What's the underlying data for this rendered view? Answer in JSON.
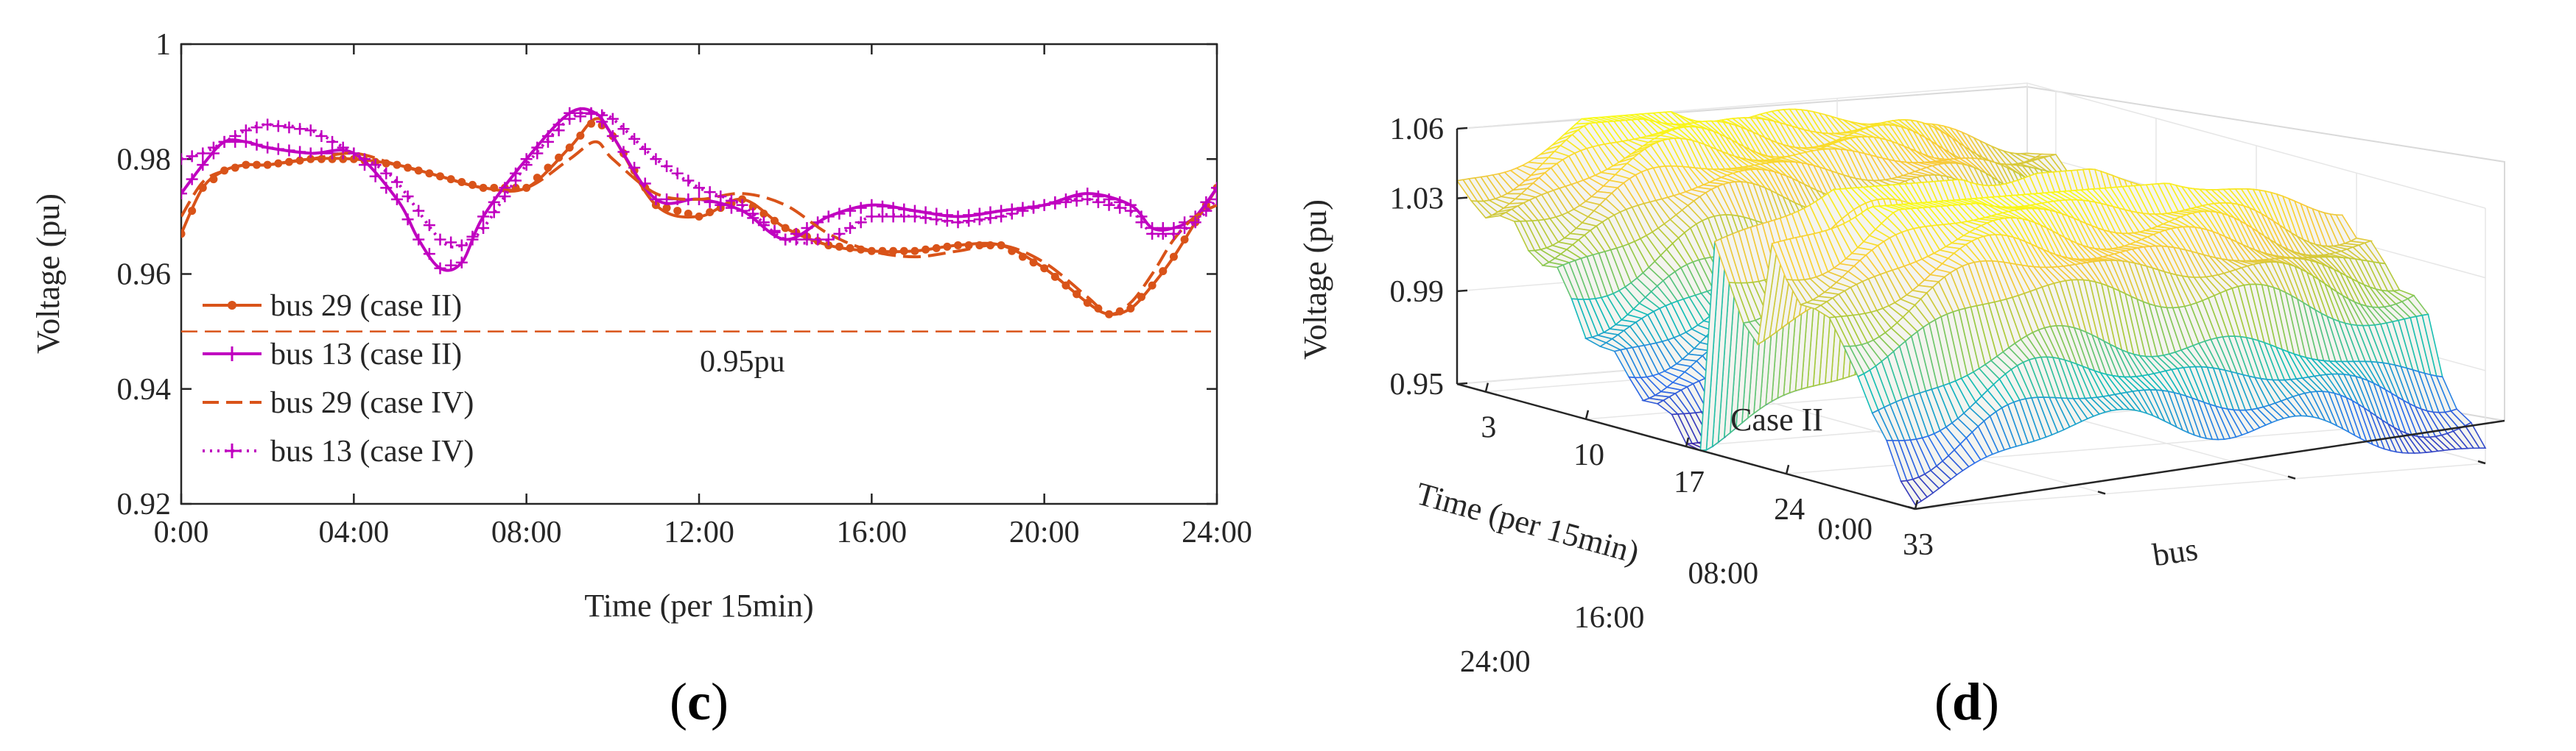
{
  "chart_data": [
    {
      "type": "line",
      "panel_label": {
        "open": "(",
        "letter": "c",
        "close": ")"
      },
      "xlabel": "Time (per 15min)",
      "ylabel": "Voltage (pu)",
      "x_ticks": [
        "0:00",
        "04:00",
        "08:00",
        "12:00",
        "16:00",
        "20:00",
        "24:00"
      ],
      "y_ticks": [
        "0.92",
        "0.94",
        "0.96",
        "0.98",
        "1"
      ],
      "xlim": [
        0,
        24
      ],
      "ylim": [
        0.92,
        1.0
      ],
      "threshold": {
        "value": 0.95,
        "label": "0.95pu"
      },
      "legend_position": "lower-left",
      "series": [
        {
          "name": "bus 29 (case II)",
          "color": "#D95319",
          "style": "solid-dot",
          "x": [
            0,
            0.5,
            1,
            1.5,
            2,
            3,
            4,
            5,
            6,
            7,
            8,
            9,
            9.6,
            10,
            11,
            12,
            13,
            14,
            15,
            16,
            17,
            18,
            19,
            20,
            21,
            21.5,
            22,
            22.5,
            23,
            23.5,
            24
          ],
          "y": [
            0.967,
            0.975,
            0.978,
            0.979,
            0.979,
            0.98,
            0.98,
            0.979,
            0.977,
            0.975,
            0.975,
            0.982,
            0.987,
            0.984,
            0.972,
            0.97,
            0.973,
            0.968,
            0.965,
            0.964,
            0.964,
            0.965,
            0.965,
            0.961,
            0.955,
            0.953,
            0.954,
            0.958,
            0.963,
            0.969,
            0.975
          ]
        },
        {
          "name": "bus 13 (case II)",
          "color": "#C000C0",
          "style": "solid-plus",
          "x": [
            0,
            0.5,
            1,
            1.5,
            2,
            3,
            4,
            5,
            5.5,
            6,
            6.5,
            7,
            8,
            9,
            9.6,
            10,
            11,
            12,
            13,
            14,
            15,
            16,
            17,
            18,
            19,
            20,
            21,
            22,
            22.5,
            23,
            23.5,
            24
          ],
          "y": [
            0.974,
            0.979,
            0.983,
            0.983,
            0.982,
            0.981,
            0.981,
            0.973,
            0.966,
            0.961,
            0.962,
            0.97,
            0.98,
            0.988,
            0.988,
            0.984,
            0.973,
            0.973,
            0.971,
            0.966,
            0.97,
            0.972,
            0.971,
            0.97,
            0.971,
            0.972,
            0.974,
            0.972,
            0.968,
            0.968,
            0.97,
            0.975
          ]
        },
        {
          "name": "bus 29 (case IV)",
          "color": "#D95319",
          "style": "dashed",
          "x": [
            0,
            0.5,
            1,
            1.5,
            2,
            3,
            4,
            5,
            6,
            7,
            8,
            9,
            9.6,
            10,
            11,
            12,
            13,
            14,
            15,
            16,
            17,
            18,
            19,
            20,
            21,
            21.5,
            22,
            22.5,
            23,
            23.5,
            24
          ],
          "y": [
            0.97,
            0.976,
            0.978,
            0.979,
            0.979,
            0.98,
            0.981,
            0.979,
            0.977,
            0.975,
            0.975,
            0.98,
            0.983,
            0.98,
            0.974,
            0.973,
            0.974,
            0.972,
            0.967,
            0.964,
            0.963,
            0.964,
            0.965,
            0.962,
            0.956,
            0.953,
            0.955,
            0.96,
            0.966,
            0.97,
            0.972
          ]
        },
        {
          "name": "bus 13 (case IV)",
          "color": "#C000C0",
          "style": "dotted-plus",
          "x": [
            0,
            0.5,
            1,
            1.5,
            2,
            3,
            4,
            4.5,
            5,
            6,
            6.5,
            7,
            8,
            9,
            9.6,
            10,
            11,
            12,
            13,
            14,
            15,
            16,
            17,
            18,
            19,
            20,
            21,
            22,
            22.5,
            23,
            23.5,
            24
          ],
          "y": [
            0.98,
            0.981,
            0.983,
            0.985,
            0.986,
            0.985,
            0.981,
            0.979,
            0.976,
            0.966,
            0.965,
            0.968,
            0.979,
            0.987,
            0.988,
            0.987,
            0.98,
            0.975,
            0.972,
            0.966,
            0.966,
            0.97,
            0.97,
            0.969,
            0.97,
            0.972,
            0.973,
            0.971,
            0.967,
            0.967,
            0.969,
            0.973
          ]
        }
      ]
    },
    {
      "type": "surface3d",
      "panel_label": {
        "open": "(",
        "letter": "d",
        "close": ")"
      },
      "annotation": "Case II",
      "zlabel": "Voltage (pu)",
      "ylabel": "Time (per 15min)",
      "xlabel": "bus",
      "z_ticks": [
        "0.95",
        "0.99",
        "1.03",
        "1.06"
      ],
      "time_ticks": [
        "0:00",
        "08:00",
        "16:00",
        "24:00"
      ],
      "bus_ticks": [
        "3",
        "10",
        "17",
        "24",
        "33"
      ],
      "zlim": [
        0.95,
        1.06
      ],
      "bus_range": [
        1,
        33
      ],
      "time_range_hours": [
        0,
        24
      ],
      "colormap": "parula",
      "colormap_stops": [
        "#3E26A8",
        "#2C73EE",
        "#13BEB8",
        "#A5CA3C",
        "#F9C93A",
        "#F9FB15"
      ],
      "bus_voltage_profile": [
        1.05,
        1.048,
        1.045,
        1.042,
        1.04,
        1.035,
        1.03,
        1.025,
        1.015,
        1.005,
        1.0,
        0.995,
        0.99,
        0.985,
        0.98,
        0.975,
        0.97,
        0.968,
        1.055,
        1.04,
        1.03,
        1.02,
        1.06,
        1.05,
        1.045,
        1.04,
        1.035,
        1.03,
        1.02,
        1.0,
        0.99,
        0.98,
        0.97
      ]
    }
  ]
}
